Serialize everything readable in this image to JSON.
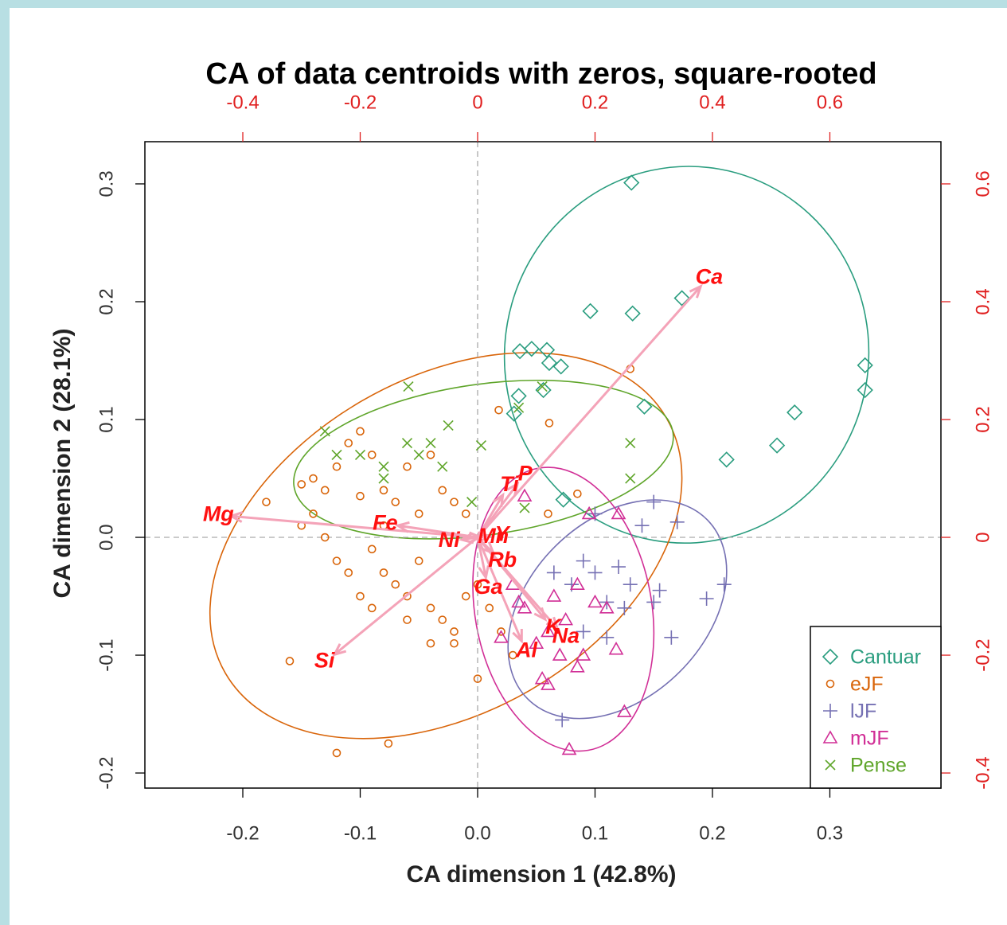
{
  "chart_data": {
    "type": "scatter",
    "title": "CA of data centroids with zeros, square-rooted",
    "x_label": "CA dimension 1 (42.8%)",
    "y_label": "CA dimension 2 (28.1%)",
    "xlim": [
      -0.2834,
      0.3946
    ],
    "ylim": [
      -0.2128,
      0.3358
    ],
    "xticks": [
      -0.2,
      -0.1,
      {
        "value": 0,
        "label": "0.0"
      },
      0.1,
      0.2,
      0.3
    ],
    "yticks": [
      -0.2,
      -0.1,
      {
        "value": 0,
        "label": "0.0"
      },
      0.1,
      0.2,
      0.3
    ],
    "x2lim": [
      -0.5668,
      0.7892
    ],
    "y2lim": [
      -0.4256,
      0.6716
    ],
    "x2ticks": [
      -0.4,
      -0.2,
      0,
      0.2,
      0.4,
      0.6
    ],
    "y2ticks": [
      -0.4,
      -0.2,
      0,
      0.2,
      0.4,
      0.6
    ],
    "zero_lines": true,
    "legend": "bottom-right",
    "series": [
      {
        "name": "Cantuar",
        "color": "#2a9d7f",
        "marker": "diamond",
        "x": [
          0.131,
          0.174,
          0.096,
          0.132,
          0.33,
          0.33,
          0.27,
          0.255,
          0.212,
          0.142,
          0.036,
          0.046,
          0.059,
          0.061,
          0.071,
          0.035,
          0.056,
          0.031,
          0.073
        ],
        "y": [
          0.301,
          0.203,
          0.192,
          0.19,
          0.146,
          0.125,
          0.106,
          0.078,
          0.066,
          0.111,
          0.158,
          0.16,
          0.159,
          0.148,
          0.145,
          0.12,
          0.125,
          0.105,
          0.032
        ],
        "ellipse": {
          "cx": 0.178,
          "cy": 0.155,
          "rx": 0.155,
          "ry": 0.16,
          "angle": -10
        }
      },
      {
        "name": "eJF",
        "color": "#d9650a",
        "marker": "circle",
        "x": [
          -0.18,
          -0.15,
          -0.14,
          -0.13,
          -0.12,
          -0.11,
          -0.1,
          -0.09,
          -0.08,
          -0.07,
          -0.06,
          -0.05,
          -0.04,
          -0.03,
          -0.02,
          -0.01,
          -0.13,
          -0.12,
          -0.11,
          -0.1,
          -0.09,
          -0.08,
          -0.07,
          -0.06,
          -0.05,
          -0.04,
          -0.03,
          -0.02,
          -0.01,
          -0.06,
          -0.04,
          -0.02,
          0.0,
          0.01,
          0.02,
          0.03,
          0.0,
          -0.16,
          -0.12,
          -0.076,
          0.13,
          0.061,
          0.018,
          0.085,
          0.06,
          -0.15,
          -0.1,
          -0.08,
          -0.14,
          -0.09
        ],
        "y": [
          0.03,
          0.01,
          0.05,
          0.04,
          0.06,
          0.08,
          0.09,
          0.07,
          0.04,
          0.03,
          0.06,
          0.02,
          0.07,
          0.04,
          0.03,
          0.02,
          0.0,
          -0.02,
          -0.03,
          -0.05,
          -0.01,
          -0.03,
          -0.04,
          -0.05,
          -0.02,
          -0.06,
          -0.07,
          -0.08,
          -0.05,
          -0.07,
          -0.09,
          -0.09,
          -0.04,
          -0.06,
          -0.08,
          -0.1,
          -0.12,
          -0.105,
          -0.183,
          -0.175,
          0.143,
          0.097,
          0.108,
          0.037,
          0.02,
          0.045,
          0.035,
          0.01,
          0.02,
          -0.06
        ],
        "ellipse": {
          "cx": -0.027,
          "cy": -0.007,
          "rx": 0.217,
          "ry": 0.142,
          "angle": 30
        }
      },
      {
        "name": "lJF",
        "color": "#7570b3",
        "marker": "plus",
        "x": [
          0.072,
          0.11,
          0.12,
          0.13,
          0.15,
          0.155,
          0.165,
          0.17,
          0.195,
          0.21,
          0.15,
          0.14,
          0.1,
          0.08,
          0.09,
          0.065,
          0.11,
          0.125,
          0.09,
          0.1
        ],
        "y": [
          -0.155,
          -0.085,
          -0.025,
          -0.04,
          -0.055,
          -0.045,
          -0.085,
          0.013,
          -0.052,
          -0.04,
          0.03,
          0.01,
          -0.03,
          -0.04,
          -0.02,
          -0.03,
          -0.055,
          -0.06,
          -0.08,
          0.02
        ],
        "ellipse": {
          "cx": 0.119,
          "cy": -0.061,
          "rx": 0.108,
          "ry": 0.075,
          "angle": 45
        }
      },
      {
        "name": "mJF",
        "color": "#d12e96",
        "marker": "triangle",
        "x": [
          0.078,
          0.125,
          0.085,
          0.055,
          0.06,
          0.07,
          0.09,
          0.05,
          0.06,
          0.04,
          0.03,
          0.065,
          0.085,
          0.1,
          0.11,
          0.118,
          0.095,
          0.12,
          0.04,
          0.02,
          0.035,
          0.075
        ],
        "y": [
          -0.18,
          -0.148,
          -0.11,
          -0.12,
          -0.125,
          -0.1,
          -0.1,
          -0.09,
          -0.08,
          -0.06,
          -0.04,
          -0.05,
          -0.04,
          -0.055,
          -0.06,
          -0.095,
          0.02,
          0.02,
          0.035,
          -0.085,
          -0.055,
          -0.07
        ],
        "ellipse": {
          "cx": 0.073,
          "cy": -0.061,
          "rx": 0.122,
          "ry": 0.075,
          "angle": 100
        }
      },
      {
        "name": "Pense",
        "color": "#5fa52a",
        "marker": "cross",
        "x": [
          -0.059,
          -0.13,
          -0.1,
          -0.08,
          -0.06,
          -0.04,
          -0.03,
          -0.025,
          0.003,
          -0.08,
          -0.05,
          0.055,
          0.13,
          0.13,
          0.04,
          -0.005,
          0.035,
          -0.12
        ],
        "y": [
          0.128,
          0.09,
          0.07,
          0.06,
          0.08,
          0.08,
          0.06,
          0.095,
          0.078,
          0.05,
          0.07,
          0.128,
          0.08,
          0.05,
          0.025,
          0.03,
          0.11,
          0.07
        ],
        "ellipse": {
          "cx": 0.005,
          "cy": 0.066,
          "rx": 0.163,
          "ry": 0.064,
          "angle": 8
        }
      }
    ],
    "arrows": {
      "color": "#f4a3b8",
      "label_color": "#ff1010",
      "names": [
        "Ca",
        "Mg",
        "Si",
        "Fe",
        "Al",
        "Na",
        "K",
        "Ga",
        "Rb",
        "P",
        "Ti",
        "Ni",
        "Mn",
        "Y"
      ],
      "x": [
        0.38,
        -0.42,
        -0.244,
        -0.136,
        0.075,
        0.136,
        0.115,
        0.014,
        0.027,
        0.068,
        0.043,
        -0.027,
        0.005,
        0.02
      ],
      "y": [
        0.426,
        0.036,
        -0.199,
        0.02,
        -0.176,
        -0.155,
        -0.139,
        -0.068,
        -0.027,
        0.091,
        0.072,
        -0.004,
        0.0,
        0.002
      ]
    }
  }
}
